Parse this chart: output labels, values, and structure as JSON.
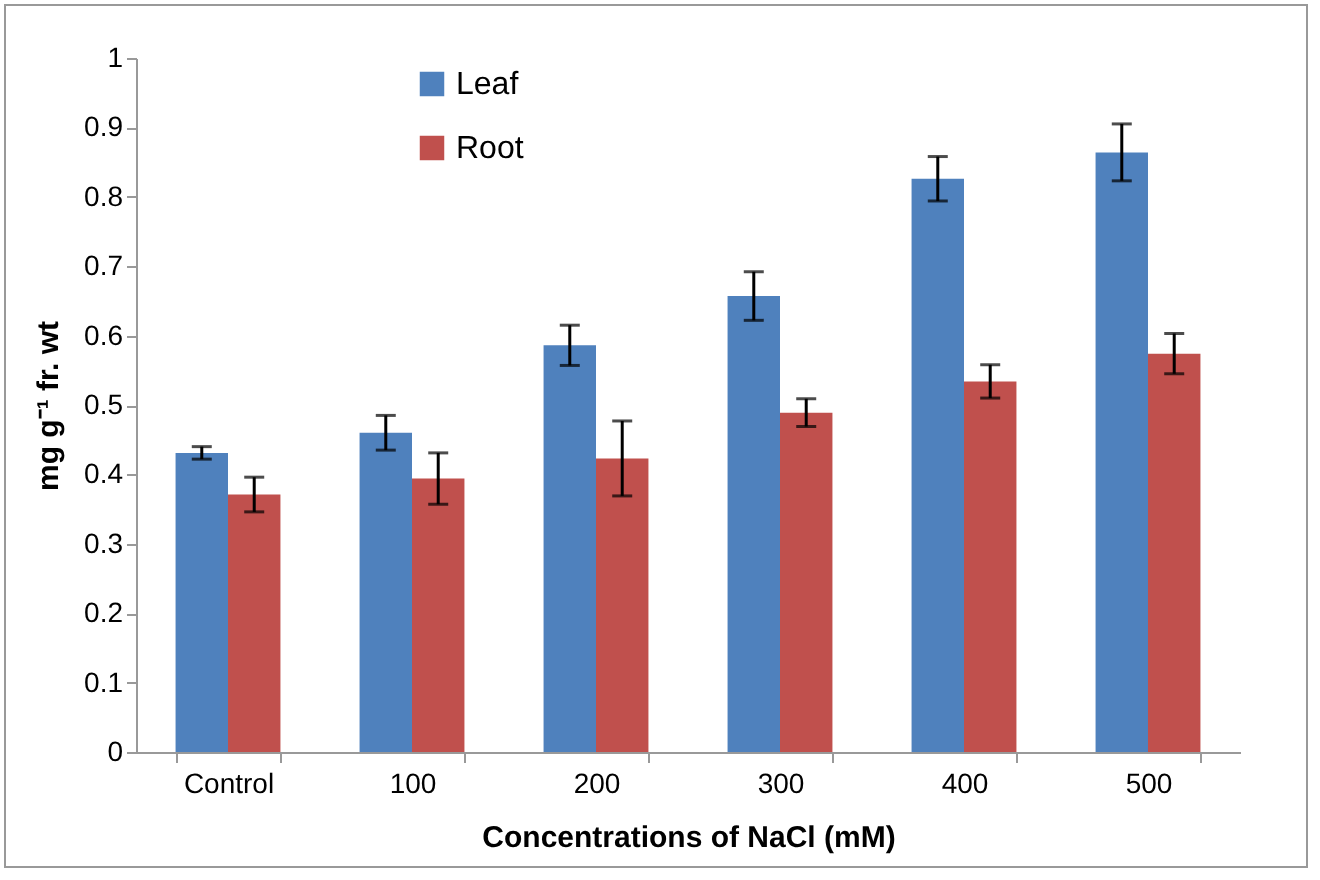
{
  "chart_data": {
    "type": "bar",
    "xlabel": "Concentrations of NaCl (mM)",
    "ylabel": "mg g⁻¹ fr. wt",
    "categories": [
      "Control",
      "100",
      "200",
      "300",
      "400",
      "500"
    ],
    "series": [
      {
        "name": "Leaf",
        "color": "#4f81bd",
        "values": [
          0.431,
          0.46,
          0.586,
          0.657,
          0.826,
          0.864
        ],
        "errors": [
          0.009,
          0.025,
          0.029,
          0.035,
          0.032,
          0.041
        ]
      },
      {
        "name": "Root",
        "color": "#c0504d",
        "values": [
          0.371,
          0.394,
          0.423,
          0.489,
          0.534,
          0.574
        ],
        "errors": [
          0.025,
          0.037,
          0.054,
          0.02,
          0.024,
          0.029
        ]
      }
    ],
    "ylim": [
      0,
      1
    ],
    "yticks": [
      0,
      0.1,
      0.2,
      0.3,
      0.4,
      0.5,
      0.6,
      0.7,
      0.8,
      0.9,
      1
    ],
    "grid": false,
    "legend": "top left"
  }
}
